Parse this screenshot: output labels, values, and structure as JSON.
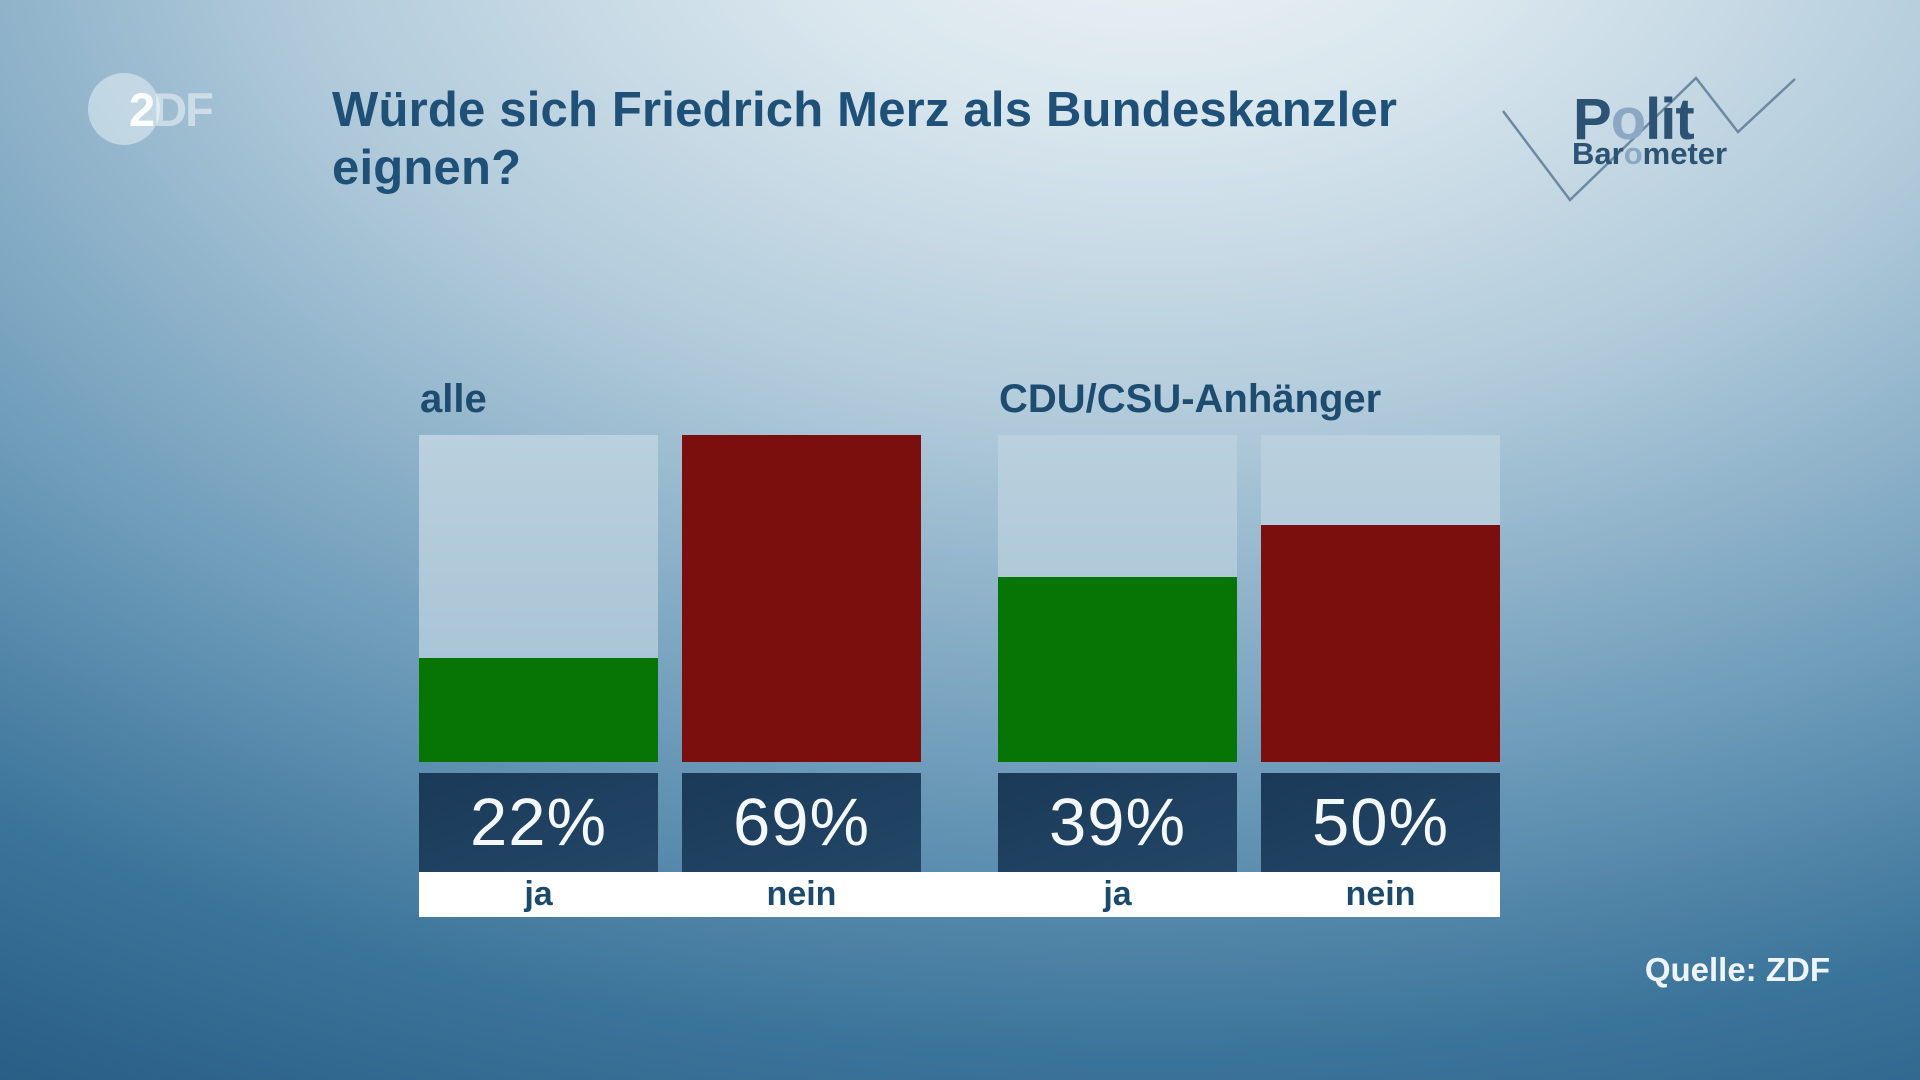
{
  "header": {
    "title_line1": "Würde sich Friedrich Merz als Bundeskanzler",
    "title_line2": "eignen?",
    "zdf_logo": {
      "part_bright": "2",
      "part_faded": "DF"
    },
    "politbarometer": {
      "line1_a": "P",
      "line1_b": "o",
      "line1_c": "lit",
      "line2_a": "Bar",
      "line2_b": "o",
      "line2_c": "meter"
    }
  },
  "chart_data": {
    "type": "bar",
    "title": "Würde sich Friedrich Merz als Bundeskanzler eignen?",
    "unit": "%",
    "value_scale_max": 69,
    "legend_position": "none",
    "grid": false,
    "colors": {
      "yes_fill": "#067506",
      "no_fill": "#7a0f0e",
      "bar_background": "#aec8d9",
      "value_box": "#1c3a5a",
      "category_strip": "#ffffff",
      "label_text": "#1d4c70"
    },
    "groups": [
      {
        "label": "alle",
        "bars": [
          {
            "category": "ja",
            "value": 22,
            "color_key": "yes_fill"
          },
          {
            "category": "nein",
            "value": 69,
            "color_key": "no_fill"
          }
        ]
      },
      {
        "label": "CDU/CSU-Anhänger",
        "bars": [
          {
            "category": "ja",
            "value": 39,
            "color_key": "yes_fill"
          },
          {
            "category": "nein",
            "value": 50,
            "color_key": "no_fill"
          }
        ]
      }
    ]
  },
  "footer": {
    "source": "Quelle: ZDF"
  }
}
